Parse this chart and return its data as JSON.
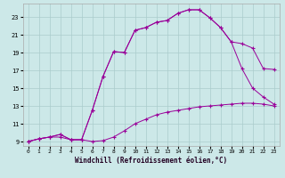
{
  "background_color": "#cce8e8",
  "grid_color": "#aacccc",
  "line_color": "#990099",
  "xlim": [
    -0.5,
    23.5
  ],
  "ylim": [
    8.5,
    24.5
  ],
  "xticks": [
    0,
    1,
    2,
    3,
    4,
    5,
    6,
    7,
    8,
    9,
    10,
    11,
    12,
    13,
    14,
    15,
    16,
    17,
    18,
    19,
    20,
    21,
    22,
    23
  ],
  "yticks": [
    9,
    11,
    13,
    15,
    17,
    19,
    21,
    23
  ],
  "xlabel": "Windchill (Refroidissement éolien,°C)",
  "line1_x": [
    0,
    1,
    2,
    3,
    4,
    5,
    6,
    7,
    8,
    9,
    10,
    11,
    12,
    13,
    14,
    15,
    16,
    17,
    18,
    19,
    20,
    21,
    22,
    23
  ],
  "line1_y": [
    9.0,
    9.3,
    9.5,
    9.5,
    9.2,
    9.2,
    9.0,
    9.1,
    9.5,
    10.2,
    11.0,
    11.5,
    12.0,
    12.3,
    12.5,
    12.7,
    12.9,
    13.0,
    13.1,
    13.2,
    13.3,
    13.3,
    13.2,
    13.0
  ],
  "line2_x": [
    0,
    1,
    2,
    3,
    4,
    5,
    6,
    7,
    8,
    9,
    10,
    11,
    12,
    13,
    14,
    15,
    16,
    17,
    18,
    19,
    20,
    21,
    22,
    23
  ],
  "line2_y": [
    9.0,
    9.3,
    9.5,
    9.8,
    9.2,
    9.2,
    12.5,
    16.3,
    19.1,
    19.0,
    21.5,
    21.8,
    22.4,
    22.6,
    23.4,
    23.8,
    23.8,
    22.9,
    21.8,
    20.2,
    17.2,
    15.0,
    14.0,
    13.2
  ],
  "line3_x": [
    0,
    1,
    2,
    3,
    4,
    5,
    6,
    7,
    8,
    9,
    10,
    11,
    12,
    13,
    14,
    15,
    16,
    17,
    18,
    19,
    20,
    21,
    22,
    23
  ],
  "line3_y": [
    9.0,
    9.3,
    9.5,
    9.8,
    9.2,
    9.2,
    12.5,
    16.3,
    19.1,
    19.0,
    21.5,
    21.8,
    22.4,
    22.6,
    23.4,
    23.8,
    23.8,
    22.9,
    21.8,
    20.2,
    20.0,
    19.5,
    17.2,
    17.1
  ]
}
